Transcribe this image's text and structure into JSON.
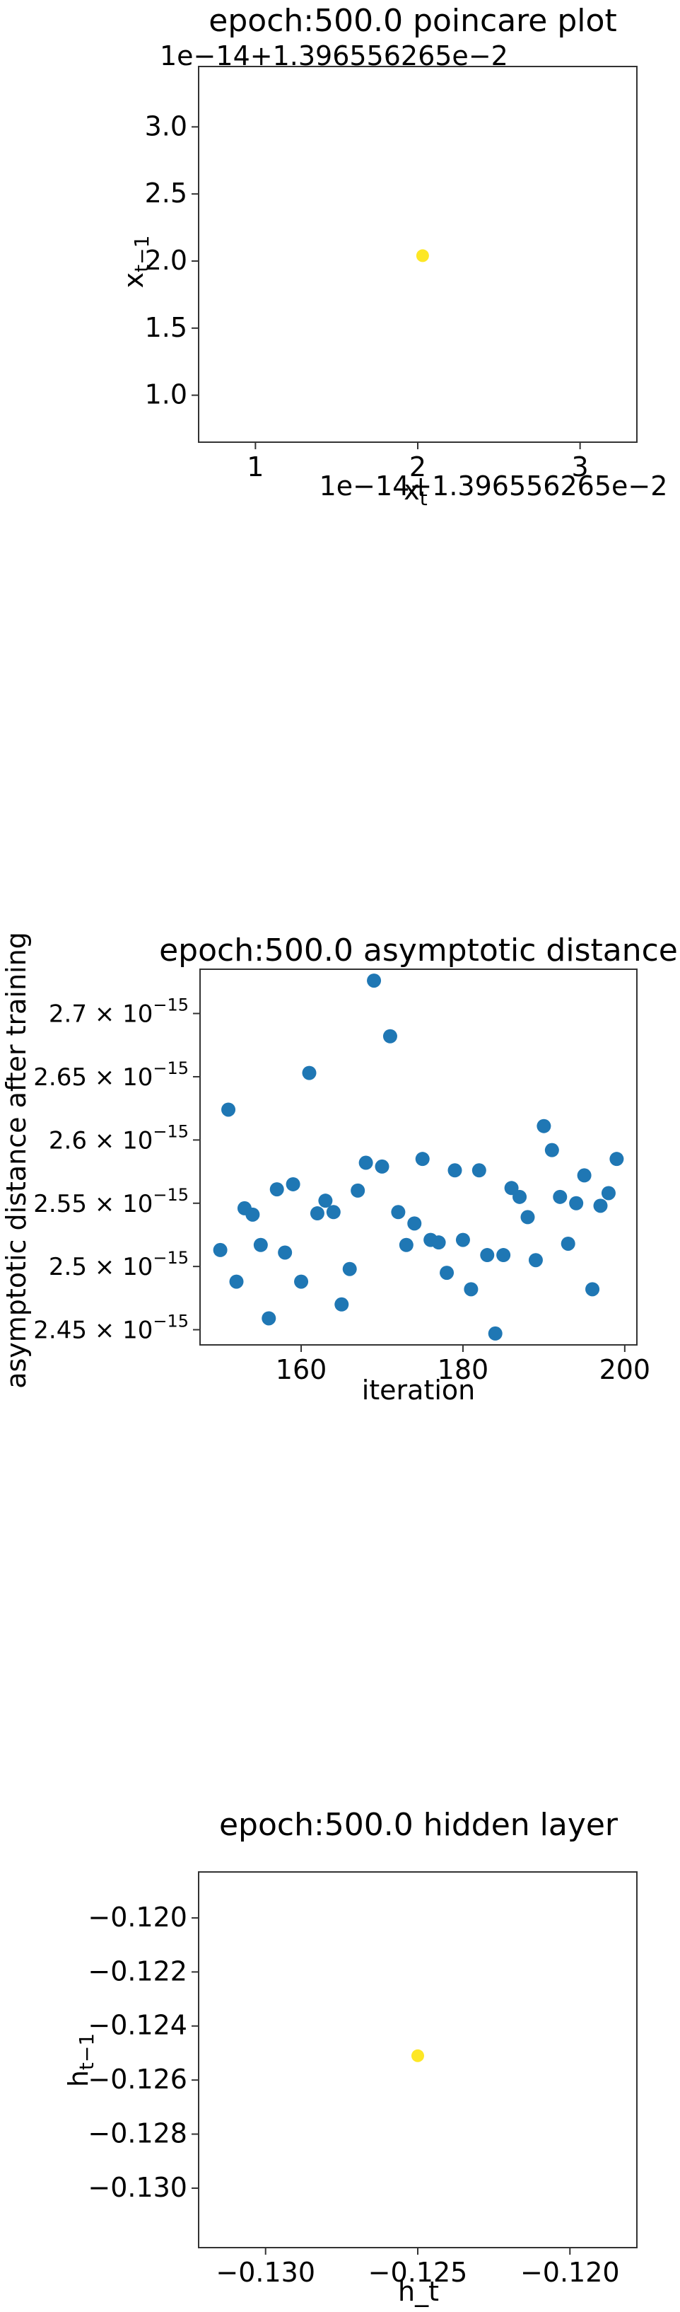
{
  "chart_data": [
    {
      "type": "scatter",
      "title": "epoch:500.0 poincare plot",
      "xlabel": "x_t",
      "ylabel": "x_{t-1}",
      "x_offset_label": "1e−14+1.396556265e−2",
      "y_offset_label": "1e−14+1.396556265e−2",
      "xlim": [
        0.65,
        3.35
      ],
      "ylim": [
        0.65,
        3.45
      ],
      "xticks": [
        1,
        2,
        3
      ],
      "xtick_labels": [
        "1",
        "2",
        "3"
      ],
      "yticks": [
        1.0,
        1.5,
        2.0,
        2.5,
        3.0
      ],
      "ytick_labels": [
        "1.0",
        "1.5",
        "2.0",
        "2.5",
        "3.0"
      ],
      "points": [
        {
          "x": 2.03,
          "y": 2.04
        }
      ],
      "color": "#fde725"
    },
    {
      "type": "scatter",
      "title": "epoch:500.0 asymptotic distance",
      "xlabel": "iteration",
      "ylabel": "asymptotic distance after training",
      "xlim": [
        147.5,
        201.5
      ],
      "ylim": [
        2.438,
        2.735
      ],
      "xticks": [
        160,
        180,
        200
      ],
      "xtick_labels": [
        "160",
        "180",
        "200"
      ],
      "yticks": [
        2.45,
        2.5,
        2.55,
        2.6,
        2.65,
        2.7
      ],
      "ytick_labels": [
        {
          "mantissa": "2.45",
          "exp": "−15"
        },
        {
          "mantissa": "2.5",
          "exp": "−15"
        },
        {
          "mantissa": "2.55",
          "exp": "−15"
        },
        {
          "mantissa": "2.6",
          "exp": "−15"
        },
        {
          "mantissa": "2.65",
          "exp": "−15"
        },
        {
          "mantissa": "2.7",
          "exp": "−15"
        }
      ],
      "times_symbol": "× 10",
      "y_scale_note": "values × 1e-15",
      "x": [
        150,
        151,
        152,
        153,
        154,
        155,
        156,
        157,
        158,
        159,
        160,
        161,
        162,
        163,
        164,
        165,
        166,
        167,
        168,
        169,
        170,
        171,
        172,
        173,
        174,
        175,
        176,
        177,
        178,
        179,
        180,
        181,
        182,
        183,
        184,
        185,
        186,
        187,
        188,
        189,
        190,
        191,
        192,
        193,
        194,
        195,
        196,
        197,
        198,
        199
      ],
      "y": [
        2.513,
        2.624,
        2.488,
        2.546,
        2.541,
        2.517,
        2.459,
        2.561,
        2.511,
        2.565,
        2.488,
        2.653,
        2.542,
        2.552,
        2.543,
        2.47,
        2.498,
        2.56,
        2.582,
        2.726,
        2.579,
        2.682,
        2.543,
        2.517,
        2.534,
        2.585,
        2.521,
        2.519,
        2.495,
        2.576,
        2.521,
        2.482,
        2.576,
        2.509,
        2.447,
        2.509,
        2.562,
        2.555,
        2.539,
        2.505,
        2.611,
        2.592,
        2.555,
        2.518,
        2.55,
        2.572,
        2.482,
        2.548,
        2.558,
        2.585
      ],
      "color": "#1f77b4"
    },
    {
      "type": "scatter",
      "title": "epoch:500.0 hidden layer",
      "xlabel": "h_t",
      "ylabel": "h_{t-1}",
      "xlim": [
        -0.1322,
        -0.1178
      ],
      "ylim": [
        -0.1322,
        -0.1183
      ],
      "xticks": [
        -0.13,
        -0.125,
        -0.12
      ],
      "xtick_labels": [
        "−0.130",
        "−0.125",
        "−0.120"
      ],
      "yticks": [
        -0.13,
        -0.128,
        -0.126,
        -0.124,
        -0.122,
        -0.12
      ],
      "ytick_labels": [
        "−0.130",
        "−0.128",
        "−0.126",
        "−0.124",
        "−0.122",
        "−0.120"
      ],
      "points": [
        {
          "x": -0.125,
          "y": -0.1251
        }
      ],
      "color": "#fde725"
    }
  ]
}
